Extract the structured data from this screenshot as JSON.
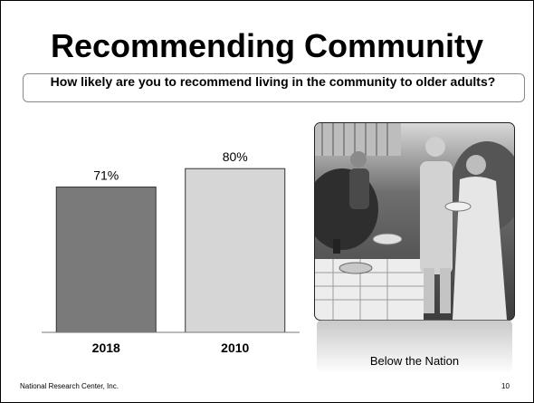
{
  "slide": {
    "title": "Recommending Community",
    "subtitle": "How likely are you to recommend living in the community to older adults?",
    "caption": "Below the Nation",
    "footer": "National Research Center, Inc.",
    "page_number": "10",
    "photo_icon": "photo-people-outdoor-picnic"
  },
  "chart_data": {
    "type": "bar",
    "categories": [
      "2018",
      "2010"
    ],
    "values": [
      71,
      80
    ],
    "value_labels": [
      "71%",
      "80%"
    ],
    "ylim": [
      0,
      100
    ],
    "colors": [
      "#7a7a7a",
      "#d6d6d6"
    ],
    "grid": false,
    "legend": "none"
  }
}
